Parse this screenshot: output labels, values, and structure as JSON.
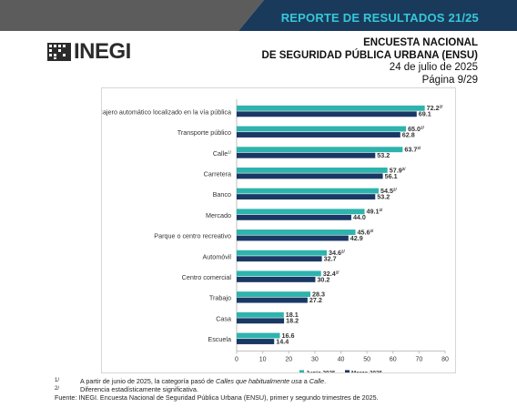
{
  "header": {
    "report_title": "REPORTE DE RESULTADOS 21/25",
    "logo_text": "INEGI",
    "survey_line1": "ENCUESTA NACIONAL",
    "survey_line2": "DE SEGURIDAD PÚBLICA URBANA (ENSU)",
    "date": "24 de julio de 2025",
    "page": "Página 9/29"
  },
  "colors": {
    "topbar_dark": "#5c5c5c",
    "topbar_navy": "#1a3a5c",
    "title_cyan": "#35c8d8",
    "series_junio": "#2fb3ad",
    "series_marzo": "#1a3864"
  },
  "chart_data": {
    "type": "bar",
    "orientation": "horizontal",
    "categories": [
      "Cajero automático localizado en la vía pública",
      "Transporte público",
      "Calle",
      "Carretera",
      "Banco",
      "Mercado",
      "Parque o centro recreativo",
      "Automóvil",
      "Centro comercial",
      "Trabajo",
      "Casa",
      "Escuela"
    ],
    "category_superscripts": [
      "",
      "",
      "1/",
      "",
      "",
      "",
      "",
      "",
      "",
      "",
      "",
      ""
    ],
    "series": [
      {
        "name": "Junio 2025",
        "values": [
          72.2,
          65.0,
          63.7,
          57.9,
          54.5,
          49.1,
          45.6,
          34.6,
          32.4,
          28.3,
          18.1,
          16.6
        ],
        "labels": [
          "72.2",
          "65.0",
          "63.7",
          "57.9",
          "54.5",
          "49.1",
          "45.6",
          "34.6",
          "32.4",
          "28.3",
          "18.1",
          "16.6"
        ],
        "superscripts": [
          "2/",
          "2/",
          "2/",
          "2/",
          "2/",
          "2/",
          "2/",
          "2/",
          "2/",
          "",
          "",
          ""
        ]
      },
      {
        "name": "Marzo 2025",
        "values": [
          69.1,
          62.8,
          53.2,
          56.1,
          53.2,
          44.0,
          42.9,
          32.7,
          30.2,
          27.2,
          18.2,
          14.4
        ],
        "labels": [
          "69.1",
          "62.8",
          "53.2",
          "56.1",
          "53.2",
          "44.0",
          "42.9",
          "32.7",
          "30.2",
          "27.2",
          "18.2",
          "14.4"
        ],
        "superscripts": [
          "",
          "",
          "",
          "",
          "",
          "",
          "",
          "",
          "",
          "",
          "",
          ""
        ]
      }
    ],
    "xlim": [
      0,
      80
    ],
    "xticks": [
      "0",
      "10",
      "20",
      "30",
      "40",
      "50",
      "60",
      "70",
      "80"
    ],
    "grid": false,
    "legend": "bottom"
  },
  "footnotes": {
    "fn1_mark": "1/",
    "fn1_text_pre": "A partir de junio de 2025, la categoría pasó de ",
    "fn1_text_em1": "Calles que habitualmente usa",
    "fn1_text_mid": " a ",
    "fn1_text_em2": "Calle",
    "fn1_text_end": ".",
    "fn2_mark": "2/",
    "fn2_text": "Diferencia estadísticamente significativa.",
    "source": "Fuente: INEGI. Encuesta Nacional de Seguridad Pública Urbana (ENSU), primer y segundo trimestres de 2025."
  }
}
